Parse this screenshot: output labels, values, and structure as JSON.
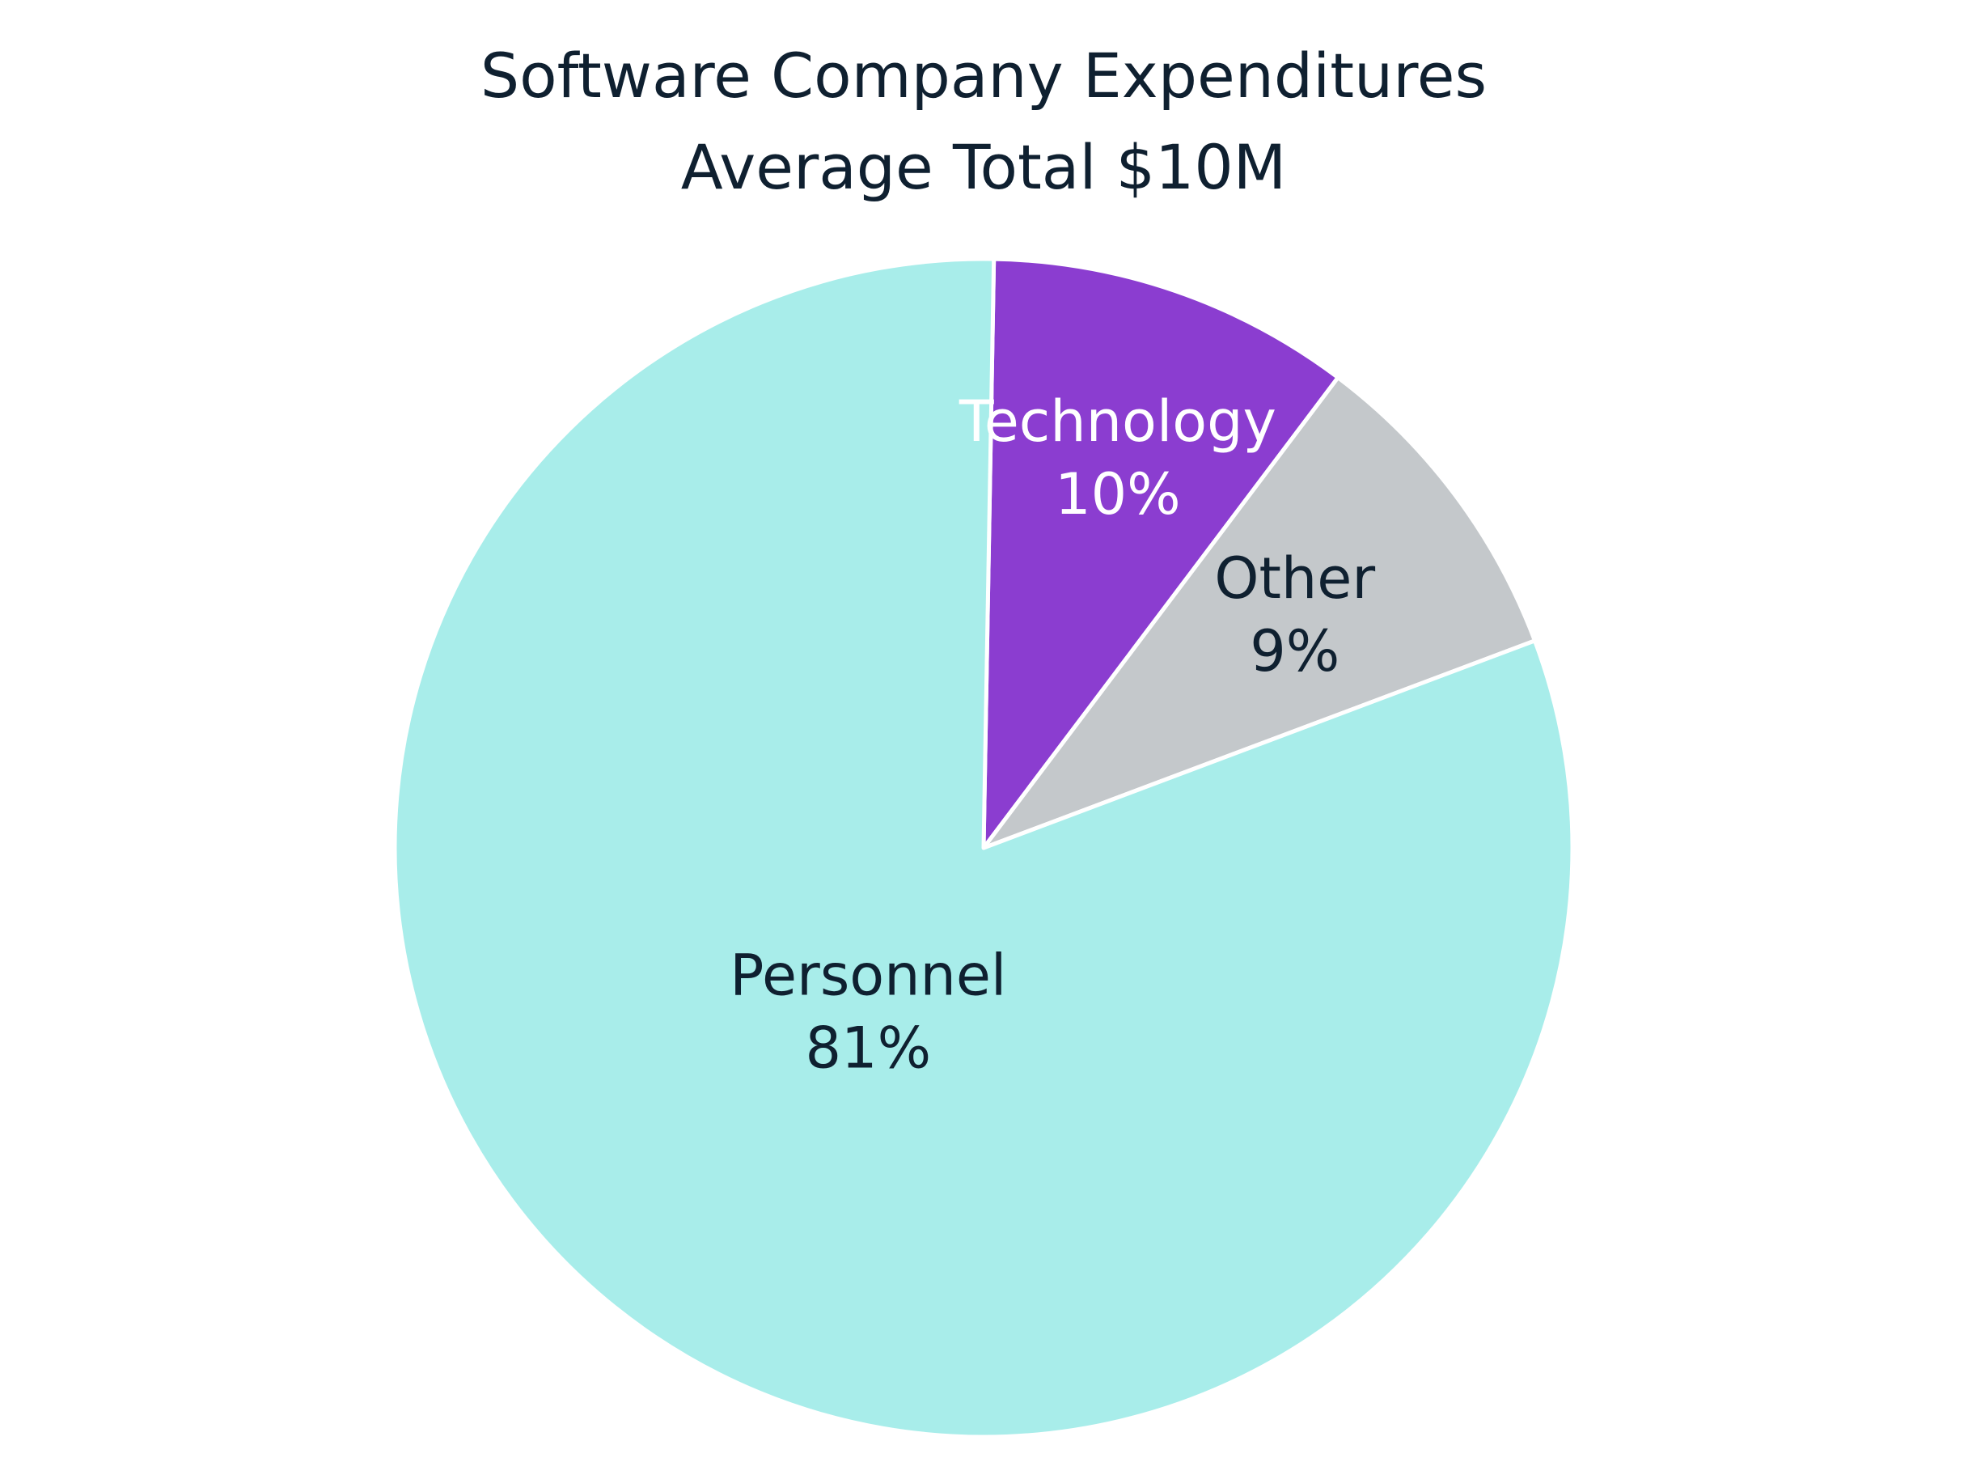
{
  "chart_data": {
    "type": "pie",
    "title": "Software Company Expenditures",
    "subtitle": "Average Total $10M",
    "slices": [
      {
        "label": "Technology",
        "value": 10,
        "value_label": "10%",
        "color": "#8b3dd0",
        "text_color": "#ffffff"
      },
      {
        "label": "Other",
        "value": 9,
        "value_label": "9%",
        "color": "#c4c8cb",
        "text_color": "#0f2030"
      },
      {
        "label": "Personnel",
        "value": 81,
        "value_label": "81%",
        "color": "#a8edea",
        "text_color": "#0f2030"
      }
    ],
    "start_at": "top",
    "direction": "clockwise",
    "slice_border_color": "#ffffff",
    "legend": "none"
  }
}
